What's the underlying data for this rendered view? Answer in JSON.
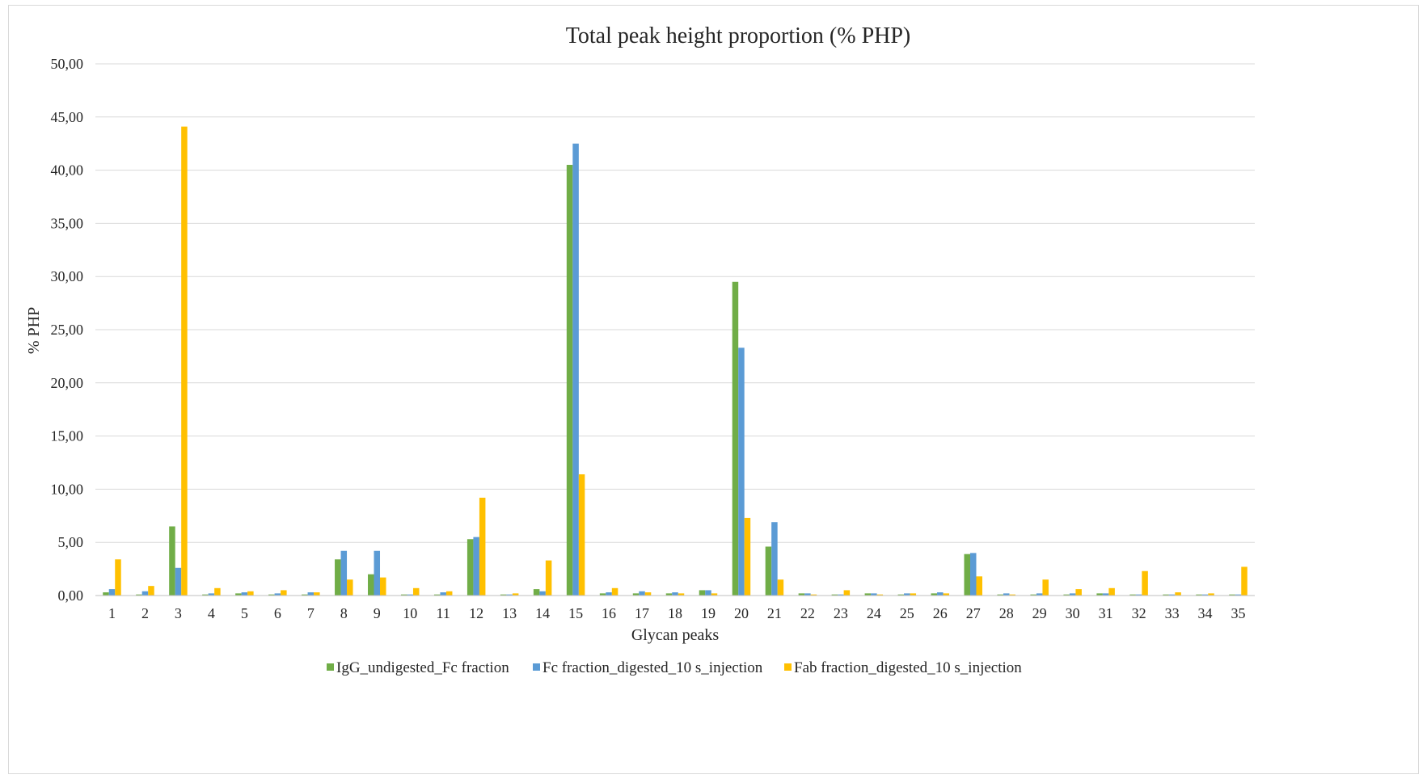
{
  "chart_data": {
    "type": "bar",
    "title": "Total peak height proportion  (% PHP)",
    "xlabel": "Glycan peaks",
    "ylabel": "% PHP",
    "ylim": [
      0,
      50
    ],
    "yticks": [
      "0,00",
      "5,00",
      "10,00",
      "15,00",
      "20,00",
      "25,00",
      "30,00",
      "35,00",
      "40,00",
      "45,00",
      "50,00"
    ],
    "grid": true,
    "legend_position": "bottom",
    "categories": [
      "1",
      "2",
      "3",
      "4",
      "5",
      "6",
      "7",
      "8",
      "9",
      "10",
      "11",
      "12",
      "13",
      "14",
      "15",
      "16",
      "17",
      "18",
      "19",
      "20",
      "21",
      "22",
      "23",
      "24",
      "25",
      "26",
      "27",
      "28",
      "29",
      "30",
      "31",
      "32",
      "33",
      "34",
      "35"
    ],
    "series": [
      {
        "name": "IgG_undigested_Fc fraction",
        "color": "#70ad47",
        "values": [
          0.3,
          0.1,
          6.5,
          0.1,
          0.2,
          0.1,
          0.1,
          3.4,
          2.0,
          0.1,
          0.1,
          5.3,
          0.1,
          0.6,
          40.5,
          0.2,
          0.2,
          0.2,
          0.5,
          29.5,
          4.6,
          0.2,
          0.1,
          0.2,
          0.1,
          0.2,
          3.9,
          0.1,
          0.1,
          0.1,
          0.2,
          0.1,
          0.1,
          0.1,
          0.1
        ]
      },
      {
        "name": "Fc fraction_digested_10 s_injection",
        "color": "#5b9bd5",
        "values": [
          0.6,
          0.4,
          2.6,
          0.2,
          0.3,
          0.2,
          0.3,
          4.2,
          4.2,
          0.1,
          0.3,
          5.5,
          0.1,
          0.4,
          42.5,
          0.3,
          0.4,
          0.3,
          0.5,
          23.3,
          6.9,
          0.2,
          0.1,
          0.2,
          0.2,
          0.3,
          4.0,
          0.2,
          0.2,
          0.2,
          0.2,
          0.1,
          0.1,
          0.1,
          0.1
        ]
      },
      {
        "name": "Fab fraction_digested_10 s_injection",
        "color": "#ffc000",
        "values": [
          3.4,
          0.9,
          44.1,
          0.7,
          0.4,
          0.5,
          0.3,
          1.5,
          1.7,
          0.7,
          0.4,
          9.2,
          0.2,
          3.3,
          11.4,
          0.7,
          0.3,
          0.2,
          0.2,
          7.3,
          1.5,
          0.1,
          0.5,
          0.1,
          0.2,
          0.2,
          1.8,
          0.1,
          1.5,
          0.6,
          0.7,
          2.3,
          0.3,
          0.2,
          2.7
        ]
      }
    ]
  }
}
